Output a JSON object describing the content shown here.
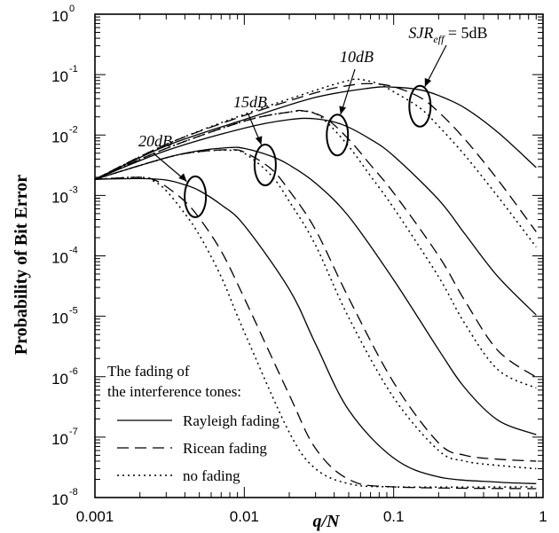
{
  "chart_data": {
    "type": "line",
    "xscale": "log",
    "yscale": "log",
    "xlim": [
      0.001,
      1
    ],
    "ylim": [
      1e-08,
      1
    ],
    "xlabel": "q/N",
    "ylabel": "Probability of Bit Error",
    "x_ticks": [
      {
        "value": 0.001,
        "label": "0.001"
      },
      {
        "value": 0.01,
        "label": "0.01"
      },
      {
        "value": 0.1,
        "label": "0.1"
      },
      {
        "value": 1,
        "label": "1"
      }
    ],
    "y_ticks": [
      {
        "value": 1,
        "base": "10",
        "exp": "0"
      },
      {
        "value": 0.1,
        "base": "10",
        "exp": "-1"
      },
      {
        "value": 0.01,
        "base": "10",
        "exp": "-2"
      },
      {
        "value": 0.001,
        "base": "10",
        "exp": "-3"
      },
      {
        "value": 0.0001,
        "base": "10",
        "exp": "-4"
      },
      {
        "value": 1e-05,
        "base": "10",
        "exp": "-5"
      },
      {
        "value": 1e-06,
        "base": "10",
        "exp": "-6"
      },
      {
        "value": 1e-07,
        "base": "10",
        "exp": "-7"
      },
      {
        "value": 1e-08,
        "base": "10",
        "exp": "-8"
      }
    ],
    "legend": {
      "title_line1": "The fading of",
      "title_line2": "the interference tones:",
      "position": "bottom-left",
      "entries": [
        {
          "label": "Rayleigh fading",
          "style": "solid"
        },
        {
          "label": "Ricean fading",
          "style": "dashed"
        },
        {
          "label": "no fading",
          "style": "dotted"
        }
      ]
    },
    "annotations": [
      {
        "text": "SJR",
        "sub": "eff",
        "rest": " = 5dB",
        "group": "5dB",
        "ellipse_x": 0.15,
        "ellipse_y": 0.03
      },
      {
        "text": "10dB",
        "group": "10dB",
        "ellipse_x": 0.042,
        "ellipse_y": 0.01
      },
      {
        "text": "15dB",
        "group": "15dB",
        "ellipse_x": 0.0138,
        "ellipse_y": 0.0032
      },
      {
        "text": "20dB",
        "group": "20dB",
        "ellipse_x": 0.0047,
        "ellipse_y": 0.00095
      }
    ],
    "series": [
      {
        "group": "5dB",
        "style": "solid",
        "points": [
          [
            0.001,
            0.00185
          ],
          [
            0.003,
            0.0066
          ],
          [
            0.01,
            0.018
          ],
          [
            0.03,
            0.042
          ],
          [
            0.07,
            0.06
          ],
          [
            0.1,
            0.062
          ],
          [
            0.15,
            0.056
          ],
          [
            0.2,
            0.045
          ],
          [
            0.3,
            0.028
          ],
          [
            0.5,
            0.011
          ],
          [
            0.9,
            0.0029
          ]
        ]
      },
      {
        "group": "5dB",
        "style": "dashed",
        "points": [
          [
            0.001,
            0.00185
          ],
          [
            0.003,
            0.007
          ],
          [
            0.01,
            0.021
          ],
          [
            0.03,
            0.05
          ],
          [
            0.05,
            0.066
          ],
          [
            0.07,
            0.071
          ],
          [
            0.1,
            0.063
          ],
          [
            0.15,
            0.042
          ],
          [
            0.2,
            0.024
          ],
          [
            0.3,
            0.0085
          ],
          [
            0.5,
            0.0018
          ],
          [
            0.9,
            0.00025
          ]
        ]
      },
      {
        "group": "5dB",
        "style": "dotted",
        "points": [
          [
            0.001,
            0.00185
          ],
          [
            0.003,
            0.007
          ],
          [
            0.01,
            0.022
          ],
          [
            0.03,
            0.055
          ],
          [
            0.05,
            0.08
          ],
          [
            0.06,
            0.083
          ],
          [
            0.08,
            0.07
          ],
          [
            0.1,
            0.052
          ],
          [
            0.15,
            0.028
          ],
          [
            0.2,
            0.014
          ],
          [
            0.3,
            0.0046
          ],
          [
            0.5,
            0.00095
          ],
          [
            0.9,
            0.00014
          ]
        ]
      },
      {
        "group": "10dB",
        "style": "solid",
        "points": [
          [
            0.001,
            0.00185
          ],
          [
            0.003,
            0.0055
          ],
          [
            0.01,
            0.013
          ],
          [
            0.02,
            0.018
          ],
          [
            0.03,
            0.0185
          ],
          [
            0.045,
            0.015
          ],
          [
            0.07,
            0.0085
          ],
          [
            0.1,
            0.0045
          ],
          [
            0.2,
            0.00085
          ],
          [
            0.3,
            0.00023
          ],
          [
            0.5,
            4.5e-05
          ],
          [
            0.9,
            1.05e-05
          ]
        ]
      },
      {
        "group": "10dB",
        "style": "dashed",
        "points": [
          [
            0.001,
            0.00185
          ],
          [
            0.003,
            0.006
          ],
          [
            0.01,
            0.017
          ],
          [
            0.02,
            0.024
          ],
          [
            0.025,
            0.025
          ],
          [
            0.035,
            0.019
          ],
          [
            0.05,
            0.0085
          ],
          [
            0.07,
            0.0032
          ],
          [
            0.1,
            0.0011
          ],
          [
            0.2,
            0.0001
          ],
          [
            0.3,
            1.8e-05
          ],
          [
            0.5,
            2.7e-06
          ],
          [
            0.9,
            9.8e-07
          ]
        ]
      },
      {
        "group": "10dB",
        "style": "dotted",
        "points": [
          [
            0.001,
            0.00185
          ],
          [
            0.003,
            0.006
          ],
          [
            0.01,
            0.017
          ],
          [
            0.02,
            0.024
          ],
          [
            0.028,
            0.024
          ],
          [
            0.035,
            0.017
          ],
          [
            0.05,
            0.0065
          ],
          [
            0.07,
            0.0021
          ],
          [
            0.1,
            0.00062
          ],
          [
            0.2,
            4.5e-05
          ],
          [
            0.3,
            7.5e-06
          ],
          [
            0.5,
            1.3e-06
          ],
          [
            0.9,
            6.5e-07
          ]
        ]
      },
      {
        "group": "15dB",
        "style": "solid",
        "points": [
          [
            0.001,
            0.00185
          ],
          [
            0.003,
            0.0042
          ],
          [
            0.005,
            0.0055
          ],
          [
            0.008,
            0.0062
          ],
          [
            0.01,
            0.006
          ],
          [
            0.015,
            0.0045
          ],
          [
            0.02,
            0.0032
          ],
          [
            0.03,
            0.0016
          ],
          [
            0.05,
            0.00045
          ],
          [
            0.1,
            4e-05
          ],
          [
            0.2,
            2.8e-06
          ],
          [
            0.3,
            6.5e-07
          ],
          [
            0.5,
            1.9e-07
          ],
          [
            0.9,
            1.1e-07
          ]
        ]
      },
      {
        "group": "15dB",
        "style": "dashed",
        "points": [
          [
            0.001,
            0.00185
          ],
          [
            0.003,
            0.0042
          ],
          [
            0.005,
            0.0053
          ],
          [
            0.008,
            0.0057
          ],
          [
            0.01,
            0.0052
          ],
          [
            0.015,
            0.0028
          ],
          [
            0.02,
            0.0012
          ],
          [
            0.03,
            0.00027
          ],
          [
            0.05,
            2e-05
          ],
          [
            0.1,
            8e-07
          ],
          [
            0.2,
            8e-08
          ],
          [
            0.3,
            5e-08
          ],
          [
            0.5,
            4.3e-08
          ],
          [
            0.9,
            4e-08
          ]
        ]
      },
      {
        "group": "15dB",
        "style": "dotted",
        "points": [
          [
            0.001,
            0.00185
          ],
          [
            0.003,
            0.0042
          ],
          [
            0.005,
            0.0053
          ],
          [
            0.008,
            0.0056
          ],
          [
            0.01,
            0.005
          ],
          [
            0.015,
            0.0022
          ],
          [
            0.02,
            0.0008
          ],
          [
            0.03,
            0.00015
          ],
          [
            0.05,
            9.5e-06
          ],
          [
            0.1,
            4.5e-07
          ],
          [
            0.2,
            6e-08
          ],
          [
            0.3,
            4e-08
          ],
          [
            0.5,
            3.4e-08
          ],
          [
            0.9,
            3e-08
          ]
        ]
      },
      {
        "group": "20dB",
        "style": "solid",
        "points": [
          [
            0.001,
            0.00185
          ],
          [
            0.002,
            0.0019
          ],
          [
            0.003,
            0.0018
          ],
          [
            0.004,
            0.0015
          ],
          [
            0.005,
            0.0012
          ],
          [
            0.007,
            0.0007
          ],
          [
            0.01,
            0.00032
          ],
          [
            0.02,
            2.8e-05
          ],
          [
            0.03,
            3.5e-06
          ],
          [
            0.05,
            2.8e-07
          ],
          [
            0.1,
            4.5e-08
          ],
          [
            0.2,
            2.2e-08
          ],
          [
            0.5,
            1.8e-08
          ],
          [
            0.9,
            1.7e-08
          ]
        ]
      },
      {
        "group": "20dB",
        "style": "dashed",
        "points": [
          [
            0.001,
            0.00185
          ],
          [
            0.002,
            0.002
          ],
          [
            0.0025,
            0.0018
          ],
          [
            0.003,
            0.0014
          ],
          [
            0.004,
            0.0008
          ],
          [
            0.005,
            0.00042
          ],
          [
            0.007,
            0.00012
          ],
          [
            0.01,
            2e-05
          ],
          [
            0.02,
            5e-07
          ],
          [
            0.03,
            6.5e-08
          ],
          [
            0.05,
            2e-08
          ],
          [
            0.1,
            1.5e-08
          ],
          [
            0.9,
            1.4e-08
          ]
        ]
      },
      {
        "group": "20dB",
        "style": "dotted",
        "points": [
          [
            0.001,
            0.00185
          ],
          [
            0.002,
            0.002
          ],
          [
            0.0025,
            0.0017
          ],
          [
            0.003,
            0.0012
          ],
          [
            0.004,
            0.0005
          ],
          [
            0.005,
            0.00022
          ],
          [
            0.007,
            4.5e-05
          ],
          [
            0.01,
            5.5e-06
          ],
          [
            0.02,
            1.2e-07
          ],
          [
            0.03,
            3e-08
          ],
          [
            0.05,
            1.7e-08
          ],
          [
            0.1,
            1.5e-08
          ],
          [
            0.9,
            1.5e-08
          ]
        ]
      }
    ]
  }
}
